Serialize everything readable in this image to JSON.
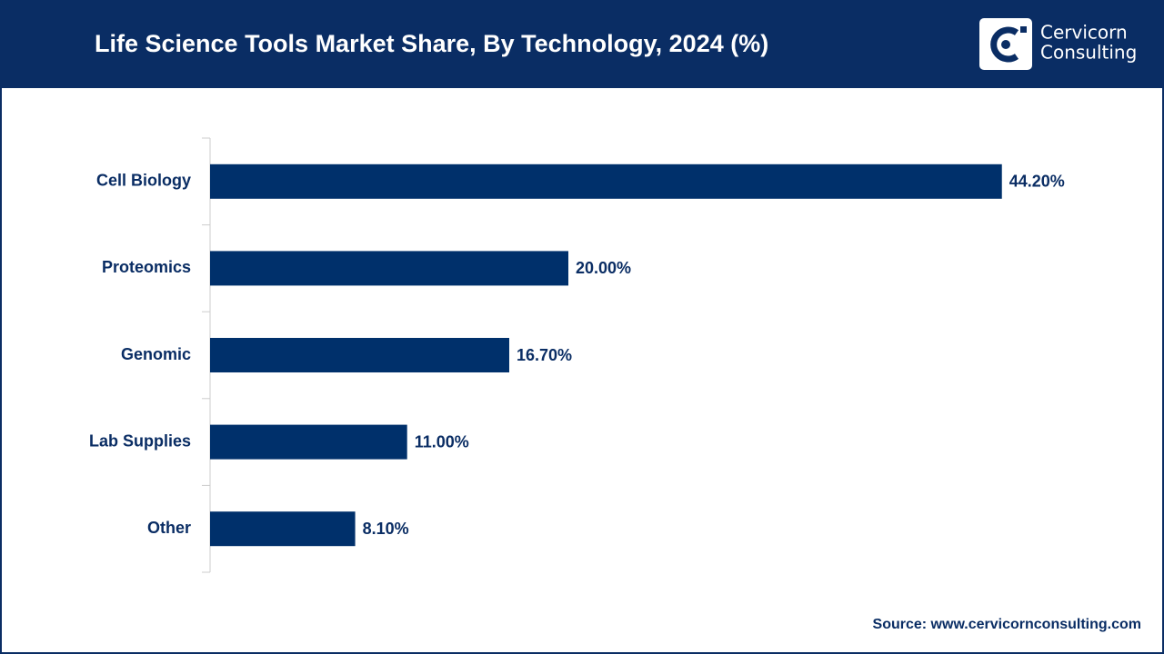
{
  "chart_data": {
    "type": "bar",
    "orientation": "horizontal",
    "title": "Life Science Tools Market Share, By Technology, 2024 (%)",
    "categories": [
      "Cell Biology",
      "Proteomics",
      "Genomic",
      "Lab Supplies",
      "Other"
    ],
    "values": [
      44.2,
      20.0,
      16.7,
      11.0,
      8.1
    ],
    "value_labels": [
      "44.20%",
      "20.00%",
      "16.70%",
      "11.00%",
      "8.10%"
    ],
    "color": "#00306b",
    "xlim": [
      0,
      50
    ]
  },
  "logo": {
    "line1": "Cervicorn",
    "line2": "Consulting"
  },
  "source": "Source: www.cervicornconsulting.com"
}
